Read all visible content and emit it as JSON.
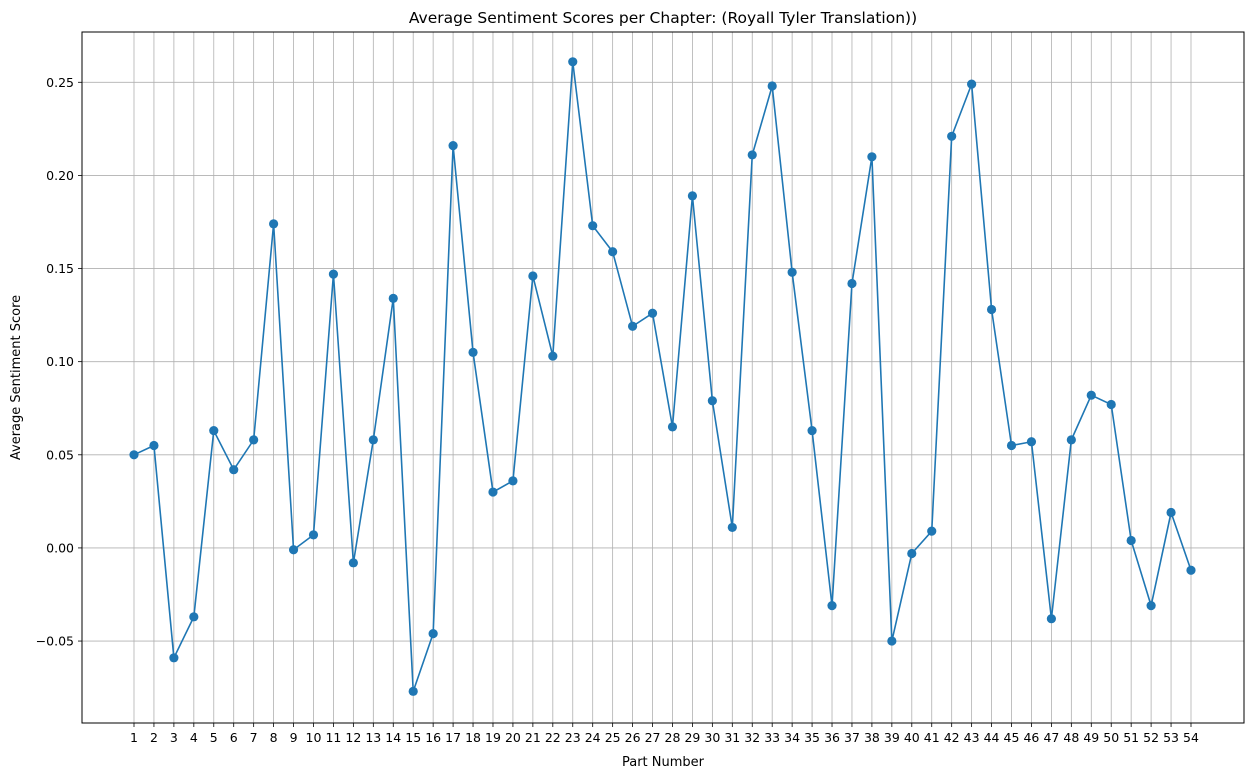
{
  "chart_data": {
    "type": "line",
    "title": "Average Sentiment Scores per Chapter: (Royall Tyler Translation))",
    "xlabel": "Part Number",
    "ylabel": "Average Sentiment Score",
    "grid": true,
    "marker": "circle",
    "color": "#1f77b4",
    "ylim": [
      -0.094,
      0.277
    ],
    "y_ticks": [
      -0.05,
      0.0,
      0.05,
      0.1,
      0.15,
      0.2,
      0.25
    ],
    "y_tick_labels": [
      "−0.05",
      "0.00",
      "0.05",
      "0.10",
      "0.15",
      "0.20",
      "0.25"
    ],
    "x": [
      1,
      2,
      3,
      4,
      5,
      6,
      7,
      8,
      9,
      10,
      11,
      12,
      13,
      14,
      15,
      16,
      17,
      18,
      19,
      20,
      21,
      22,
      23,
      24,
      25,
      26,
      27,
      28,
      29,
      30,
      31,
      32,
      33,
      34,
      35,
      36,
      37,
      38,
      39,
      40,
      41,
      42,
      43,
      44,
      45,
      46,
      47,
      48,
      49,
      50,
      51,
      52,
      53,
      54
    ],
    "series": [
      {
        "values": [
          0.05,
          0.055,
          -0.059,
          -0.037,
          0.063,
          0.042,
          0.058,
          0.174,
          -0.001,
          0.007,
          0.147,
          -0.008,
          0.058,
          0.134,
          -0.077,
          -0.046,
          0.216,
          0.105,
          0.03,
          0.036,
          0.146,
          0.103,
          0.261,
          0.173,
          0.159,
          0.119,
          0.126,
          0.065,
          0.189,
          0.079,
          0.011,
          0.211,
          0.248,
          0.148,
          0.063,
          -0.031,
          0.142,
          0.21,
          -0.05,
          -0.003,
          0.009,
          0.221,
          0.249,
          0.128,
          0.055,
          0.057,
          -0.038,
          0.058,
          0.082,
          0.077,
          0.004,
          -0.031,
          0.019,
          -0.012
        ]
      }
    ]
  }
}
